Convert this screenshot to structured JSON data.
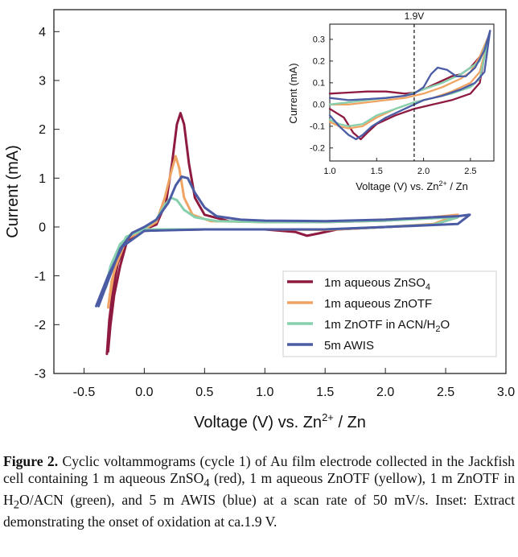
{
  "chart_data": [
    {
      "type": "line",
      "xlabel": "Voltage (V) vs. Zn",
      "xlabel_sup": "2+",
      "xlabel_tail": "/ Zn",
      "ylabel": "Current (mA)",
      "xlim": [
        -0.75,
        3.0
      ],
      "ylim": [
        -3,
        4.45
      ],
      "xticks": [
        "-0.5",
        "0.0",
        "0.5",
        "1.0",
        "1.5",
        "2.0",
        "2.5",
        "3.0"
      ],
      "yticks": [
        "-3",
        "-2",
        "-1",
        "0",
        "1",
        "2",
        "3",
        "4"
      ],
      "legend_position": "lower-right",
      "series": [
        {
          "name": "1m aqueous ZnSO4",
          "label": {
            "main": "1m aqueous ZnSO",
            "sub": "4"
          },
          "color": "#8e1b3f",
          "points": [
            [
              -0.3,
              -2.55
            ],
            [
              -0.28,
              -2.0
            ],
            [
              -0.25,
              -1.4
            ],
            [
              -0.2,
              -0.8
            ],
            [
              -0.15,
              -0.35
            ],
            [
              -0.08,
              -0.12
            ],
            [
              0.0,
              -0.05
            ],
            [
              0.1,
              0.05
            ],
            [
              0.18,
              0.5
            ],
            [
              0.23,
              1.3
            ],
            [
              0.27,
              2.1
            ],
            [
              0.3,
              2.33
            ],
            [
              0.33,
              2.1
            ],
            [
              0.37,
              1.3
            ],
            [
              0.42,
              0.6
            ],
            [
              0.5,
              0.25
            ],
            [
              0.7,
              0.12
            ],
            [
              1.0,
              0.1
            ],
            [
              1.5,
              0.1
            ],
            [
              2.0,
              0.13
            ],
            [
              2.3,
              0.18
            ],
            [
              2.5,
              0.22
            ],
            [
              2.6,
              0.2
            ],
            [
              2.4,
              0.05
            ],
            [
              2.0,
              0.0
            ],
            [
              1.6,
              -0.05
            ],
            [
              1.45,
              -0.13
            ],
            [
              1.35,
              -0.18
            ],
            [
              1.25,
              -0.1
            ],
            [
              1.0,
              -0.05
            ],
            [
              0.5,
              -0.05
            ],
            [
              0.2,
              -0.06
            ],
            [
              0.0,
              -0.08
            ],
            [
              -0.15,
              -0.3
            ],
            [
              -0.22,
              -0.75
            ],
            [
              -0.26,
              -1.3
            ],
            [
              -0.29,
              -1.9
            ],
            [
              -0.31,
              -2.6
            ]
          ]
        },
        {
          "name": "1m aqueous ZnOTF",
          "label": {
            "main": "1m aqueous ZnOTF"
          },
          "color": "#f0a464",
          "points": [
            [
              -0.3,
              -1.65
            ],
            [
              -0.27,
              -1.1
            ],
            [
              -0.2,
              -0.5
            ],
            [
              -0.12,
              -0.18
            ],
            [
              0.0,
              -0.05
            ],
            [
              0.1,
              0.1
            ],
            [
              0.17,
              0.6
            ],
            [
              0.22,
              1.1
            ],
            [
              0.26,
              1.45
            ],
            [
              0.29,
              1.2
            ],
            [
              0.33,
              0.6
            ],
            [
              0.4,
              0.25
            ],
            [
              0.55,
              0.12
            ],
            [
              1.0,
              0.1
            ],
            [
              1.5,
              0.1
            ],
            [
              2.0,
              0.15
            ],
            [
              2.4,
              0.2
            ],
            [
              2.6,
              0.25
            ],
            [
              2.4,
              0.06
            ],
            [
              2.0,
              0.0
            ],
            [
              1.5,
              -0.06
            ],
            [
              1.0,
              -0.05
            ],
            [
              0.5,
              -0.05
            ],
            [
              0.0,
              -0.06
            ],
            [
              -0.15,
              -0.25
            ],
            [
              -0.25,
              -0.9
            ],
            [
              -0.3,
              -1.65
            ]
          ]
        },
        {
          "name": "1m ZnOTF in ACN/H2O",
          "label": {
            "main": "1m ZnOTF in  ACN/H",
            "sub": "2",
            "tail": "O"
          },
          "color": "#86d0ad",
          "points": [
            [
              -0.32,
              -1.25
            ],
            [
              -0.28,
              -0.8
            ],
            [
              -0.2,
              -0.35
            ],
            [
              -0.1,
              -0.12
            ],
            [
              0.0,
              -0.02
            ],
            [
              0.1,
              0.15
            ],
            [
              0.17,
              0.45
            ],
            [
              0.22,
              0.6
            ],
            [
              0.27,
              0.55
            ],
            [
              0.33,
              0.35
            ],
            [
              0.42,
              0.2
            ],
            [
              0.6,
              0.12
            ],
            [
              1.0,
              0.1
            ],
            [
              1.5,
              0.1
            ],
            [
              2.0,
              0.13
            ],
            [
              2.4,
              0.18
            ],
            [
              2.6,
              0.2
            ],
            [
              2.4,
              0.05
            ],
            [
              2.0,
              0.0
            ],
            [
              1.5,
              -0.05
            ],
            [
              1.0,
              -0.05
            ],
            [
              0.5,
              -0.05
            ],
            [
              0.0,
              -0.05
            ],
            [
              -0.15,
              -0.2
            ],
            [
              -0.25,
              -0.7
            ],
            [
              -0.32,
              -1.25
            ]
          ]
        },
        {
          "name": "5m AWIS",
          "label": {
            "main": "5m AWIS"
          },
          "color": "#4b5ca5",
          "points": [
            [
              -0.38,
              -1.62
            ],
            [
              -0.3,
              -1.1
            ],
            [
              -0.2,
              -0.45
            ],
            [
              -0.1,
              -0.12
            ],
            [
              0.0,
              0.0
            ],
            [
              0.1,
              0.15
            ],
            [
              0.2,
              0.5
            ],
            [
              0.26,
              0.85
            ],
            [
              0.31,
              1.03
            ],
            [
              0.36,
              1.0
            ],
            [
              0.42,
              0.7
            ],
            [
              0.5,
              0.4
            ],
            [
              0.6,
              0.22
            ],
            [
              0.8,
              0.15
            ],
            [
              1.0,
              0.13
            ],
            [
              1.5,
              0.12
            ],
            [
              2.0,
              0.15
            ],
            [
              2.4,
              0.2
            ],
            [
              2.6,
              0.22
            ],
            [
              2.7,
              0.25
            ],
            [
              2.6,
              0.06
            ],
            [
              2.0,
              0.0
            ],
            [
              1.5,
              -0.05
            ],
            [
              1.0,
              -0.05
            ],
            [
              0.5,
              -0.05
            ],
            [
              0.0,
              -0.08
            ],
            [
              -0.18,
              -0.4
            ],
            [
              -0.3,
              -1.0
            ],
            [
              -0.4,
              -1.62
            ]
          ]
        }
      ]
    },
    {
      "type": "line",
      "xlabel": "Voltage (V) vs. Zn",
      "xlabel_sup": "2+",
      "xlabel_tail": "/ Zn",
      "ylabel": "Current (mA)",
      "xlim": [
        1.0,
        2.75
      ],
      "ylim": [
        -0.26,
        0.37
      ],
      "xticks": [
        "1.0",
        "1.5",
        "2.0",
        "2.5"
      ],
      "yticks": [
        "-0.2",
        "-0.1",
        "0.0",
        "0.1",
        "0.2",
        "0.3"
      ],
      "annotation": {
        "text": "1.9V",
        "x": 1.9
      },
      "series": [
        {
          "name": "1m aqueous ZnSO4",
          "color": "#8e1b3f",
          "points": [
            [
              1.0,
              0.05
            ],
            [
              1.2,
              0.055
            ],
            [
              1.4,
              0.06
            ],
            [
              1.6,
              0.06
            ],
            [
              1.8,
              0.05
            ],
            [
              1.9,
              0.055
            ],
            [
              2.0,
              0.07
            ],
            [
              2.1,
              0.09
            ],
            [
              2.2,
              0.11
            ],
            [
              2.3,
              0.13
            ],
            [
              2.4,
              0.14
            ],
            [
              2.5,
              0.17
            ],
            [
              2.6,
              0.22
            ],
            [
              2.68,
              0.3
            ],
            [
              2.6,
              0.1
            ],
            [
              2.5,
              0.05
            ],
            [
              2.3,
              0.02
            ],
            [
              2.1,
              0.0
            ],
            [
              1.9,
              -0.02
            ],
            [
              1.7,
              -0.05
            ],
            [
              1.5,
              -0.09
            ],
            [
              1.4,
              -0.13
            ],
            [
              1.33,
              -0.16
            ],
            [
              1.25,
              -0.13
            ],
            [
              1.15,
              -0.06
            ],
            [
              1.0,
              -0.02
            ]
          ]
        },
        {
          "name": "1m aqueous ZnOTF",
          "color": "#f0a464",
          "points": [
            [
              1.0,
              0.0
            ],
            [
              1.2,
              0.0
            ],
            [
              1.4,
              0.01
            ],
            [
              1.6,
              0.02
            ],
            [
              1.8,
              0.03
            ],
            [
              2.0,
              0.05
            ],
            [
              2.2,
              0.08
            ],
            [
              2.4,
              0.12
            ],
            [
              2.5,
              0.15
            ],
            [
              2.6,
              0.22
            ],
            [
              2.7,
              0.32
            ],
            [
              2.6,
              0.15
            ],
            [
              2.5,
              0.1
            ],
            [
              2.3,
              0.06
            ],
            [
              2.1,
              0.03
            ],
            [
              1.9,
              0.01
            ],
            [
              1.7,
              -0.02
            ],
            [
              1.5,
              -0.06
            ],
            [
              1.35,
              -0.1
            ],
            [
              1.2,
              -0.11
            ],
            [
              1.1,
              -0.1
            ],
            [
              1.0,
              -0.08
            ]
          ]
        },
        {
          "name": "1m ZnOTF in ACN/H2O",
          "color": "#86d0ad",
          "points": [
            [
              1.0,
              0.0
            ],
            [
              1.2,
              0.01
            ],
            [
              1.4,
              0.02
            ],
            [
              1.6,
              0.03
            ],
            [
              1.8,
              0.04
            ],
            [
              2.0,
              0.07
            ],
            [
              2.2,
              0.1
            ],
            [
              2.4,
              0.14
            ],
            [
              2.5,
              0.17
            ],
            [
              2.6,
              0.2
            ],
            [
              2.7,
              0.32
            ],
            [
              2.6,
              0.12
            ],
            [
              2.5,
              0.08
            ],
            [
              2.3,
              0.05
            ],
            [
              2.1,
              0.03
            ],
            [
              1.9,
              0.01
            ],
            [
              1.7,
              -0.02
            ],
            [
              1.5,
              -0.05
            ],
            [
              1.35,
              -0.09
            ],
            [
              1.2,
              -0.1
            ],
            [
              1.1,
              -0.09
            ],
            [
              1.0,
              -0.07
            ]
          ]
        },
        {
          "name": "5m AWIS",
          "color": "#4b5ca5",
          "points": [
            [
              1.0,
              0.03
            ],
            [
              1.2,
              0.02
            ],
            [
              1.4,
              0.025
            ],
            [
              1.6,
              0.03
            ],
            [
              1.8,
              0.04
            ],
            [
              1.9,
              0.05
            ],
            [
              2.0,
              0.08
            ],
            [
              2.08,
              0.14
            ],
            [
              2.15,
              0.17
            ],
            [
              2.25,
              0.16
            ],
            [
              2.35,
              0.13
            ],
            [
              2.45,
              0.13
            ],
            [
              2.55,
              0.17
            ],
            [
              2.65,
              0.25
            ],
            [
              2.71,
              0.34
            ],
            [
              2.65,
              0.15
            ],
            [
              2.55,
              0.1
            ],
            [
              2.4,
              0.07
            ],
            [
              2.2,
              0.04
            ],
            [
              2.0,
              0.02
            ],
            [
              1.8,
              -0.02
            ],
            [
              1.6,
              -0.06
            ],
            [
              1.45,
              -0.1
            ],
            [
              1.35,
              -0.14
            ],
            [
              1.28,
              -0.16
            ],
            [
              1.2,
              -0.14
            ],
            [
              1.1,
              -0.1
            ],
            [
              1.0,
              -0.05
            ]
          ]
        }
      ]
    }
  ],
  "caption": {
    "label": "Figure 2.",
    "text": " Cyclic voltammograms (cycle 1) of Au film electrode collected in the Jackfish cell containing 1 m aqueous ZnSO",
    "sub1": "4",
    "text2": " (red), 1 m aqueous ZnOTF (yellow), 1 m ZnOTF in H",
    "sub2": "2",
    "text3": "O/ACN (green), and 5 m AWIS (blue) at a scan rate of 50 mV/s. Inset: Extract demonstrating the onset of oxidation at ca.1.9 V."
  }
}
